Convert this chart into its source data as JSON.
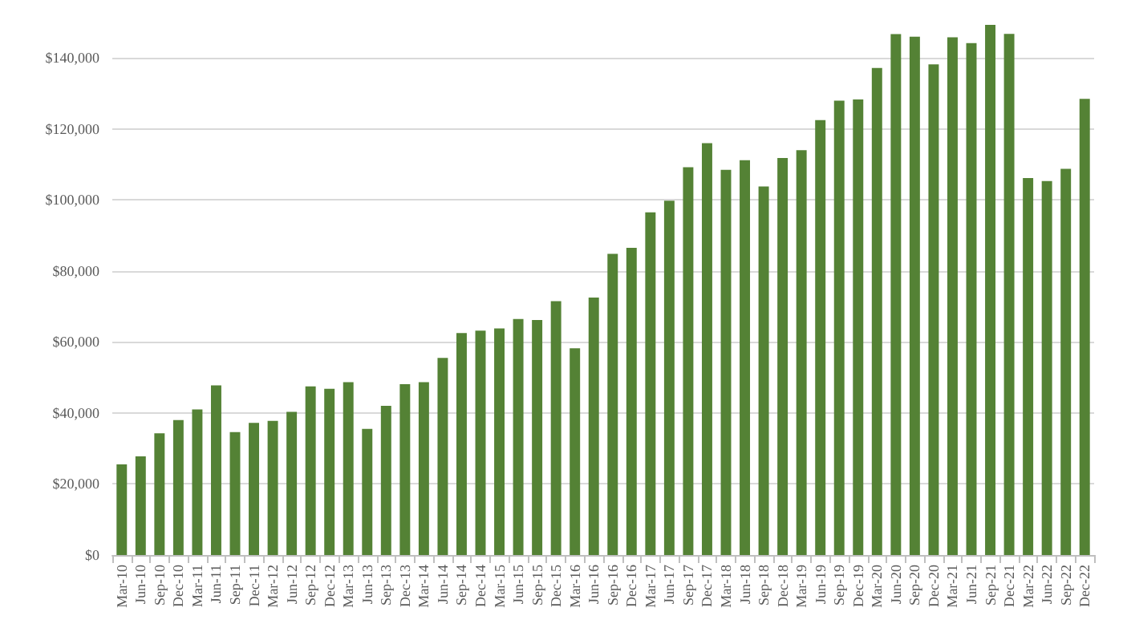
{
  "chart_data": {
    "type": "bar",
    "categories": [
      "Mar-10",
      "Jun-10",
      "Sep-10",
      "Dec-10",
      "Mar-11",
      "Jun-11",
      "Sep-11",
      "Dec-11",
      "Mar-12",
      "Jun-12",
      "Sep-12",
      "Dec-12",
      "Mar-13",
      "Jun-13",
      "Sep-13",
      "Dec-13",
      "Mar-14",
      "Jun-14",
      "Sep-14",
      "Dec-14",
      "Mar-15",
      "Jun-15",
      "Sep-15",
      "Dec-15",
      "Mar-16",
      "Jun-16",
      "Sep-16",
      "Dec-16",
      "Mar-17",
      "Jun-17",
      "Sep-17",
      "Dec-17",
      "Mar-18",
      "Jun-18",
      "Sep-18",
      "Dec-18",
      "Mar-19",
      "Jun-19",
      "Sep-19",
      "Dec-19",
      "Mar-20",
      "Jun-20",
      "Sep-20",
      "Dec-20",
      "Mar-21",
      "Jun-21",
      "Sep-21",
      "Dec-21",
      "Mar-22",
      "Jun-22",
      "Sep-22",
      "Dec-22"
    ],
    "values": [
      25500,
      27800,
      34300,
      38000,
      41000,
      47800,
      34600,
      37200,
      37800,
      40300,
      47500,
      46800,
      48700,
      35500,
      42000,
      48100,
      48700,
      55500,
      62500,
      63200,
      63800,
      66500,
      66200,
      71500,
      58200,
      72500,
      84800,
      86500,
      96500,
      99800,
      109200,
      116000,
      108500,
      111200,
      103800,
      111800,
      114000,
      122500,
      128000,
      128300,
      137200,
      146700,
      146000,
      138200,
      145800,
      144200,
      149300,
      146800,
      106200,
      105300,
      108800,
      128500
    ],
    "color": "#548235",
    "ylim": [
      0,
      150000
    ],
    "yticks": [
      {
        "value": 0,
        "label": "$0"
      },
      {
        "value": 20000,
        "label": "$20,000"
      },
      {
        "value": 40000,
        "label": "$40,000"
      },
      {
        "value": 60000,
        "label": "$60,000"
      },
      {
        "value": 80000,
        "label": "$80,000"
      },
      {
        "value": 100000,
        "label": "$100,000"
      },
      {
        "value": 120000,
        "label": "$120,000"
      },
      {
        "value": 140000,
        "label": "$140,000"
      }
    ],
    "grid": "y"
  }
}
